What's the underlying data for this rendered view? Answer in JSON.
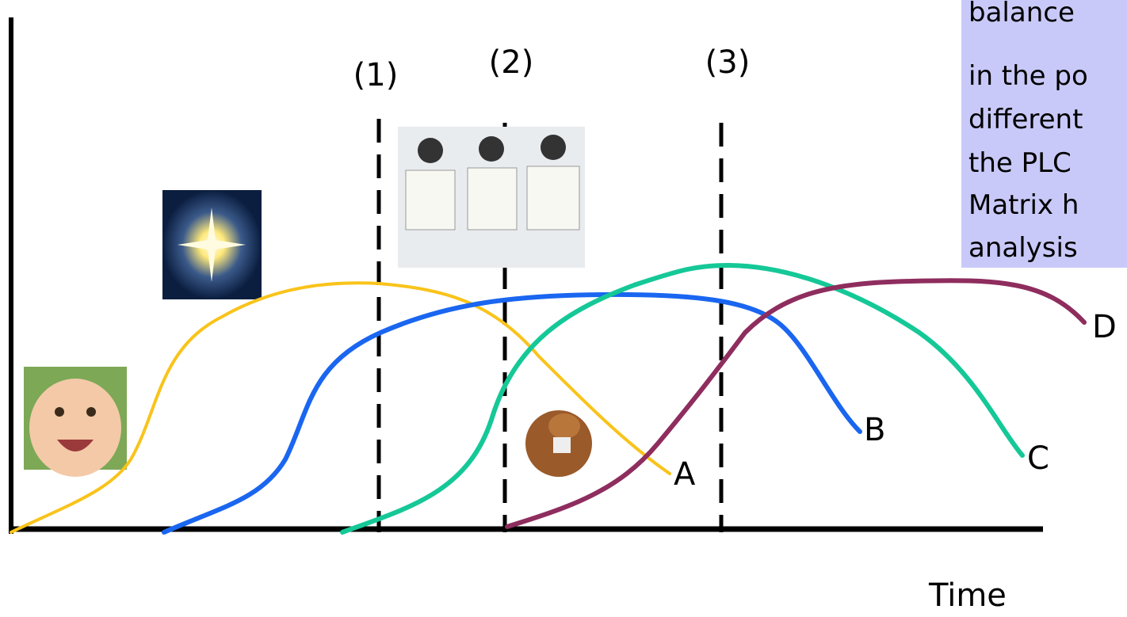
{
  "stage_labels": [
    "(1)",
    "(2)",
    "(3)"
  ],
  "curve_labels": [
    "A",
    "B",
    "C",
    "D"
  ],
  "axis_label": "Time",
  "note_lines": [
    "balance",
    "in the po",
    "different",
    "the PLC",
    "Matrix h",
    "analysis"
  ]
}
